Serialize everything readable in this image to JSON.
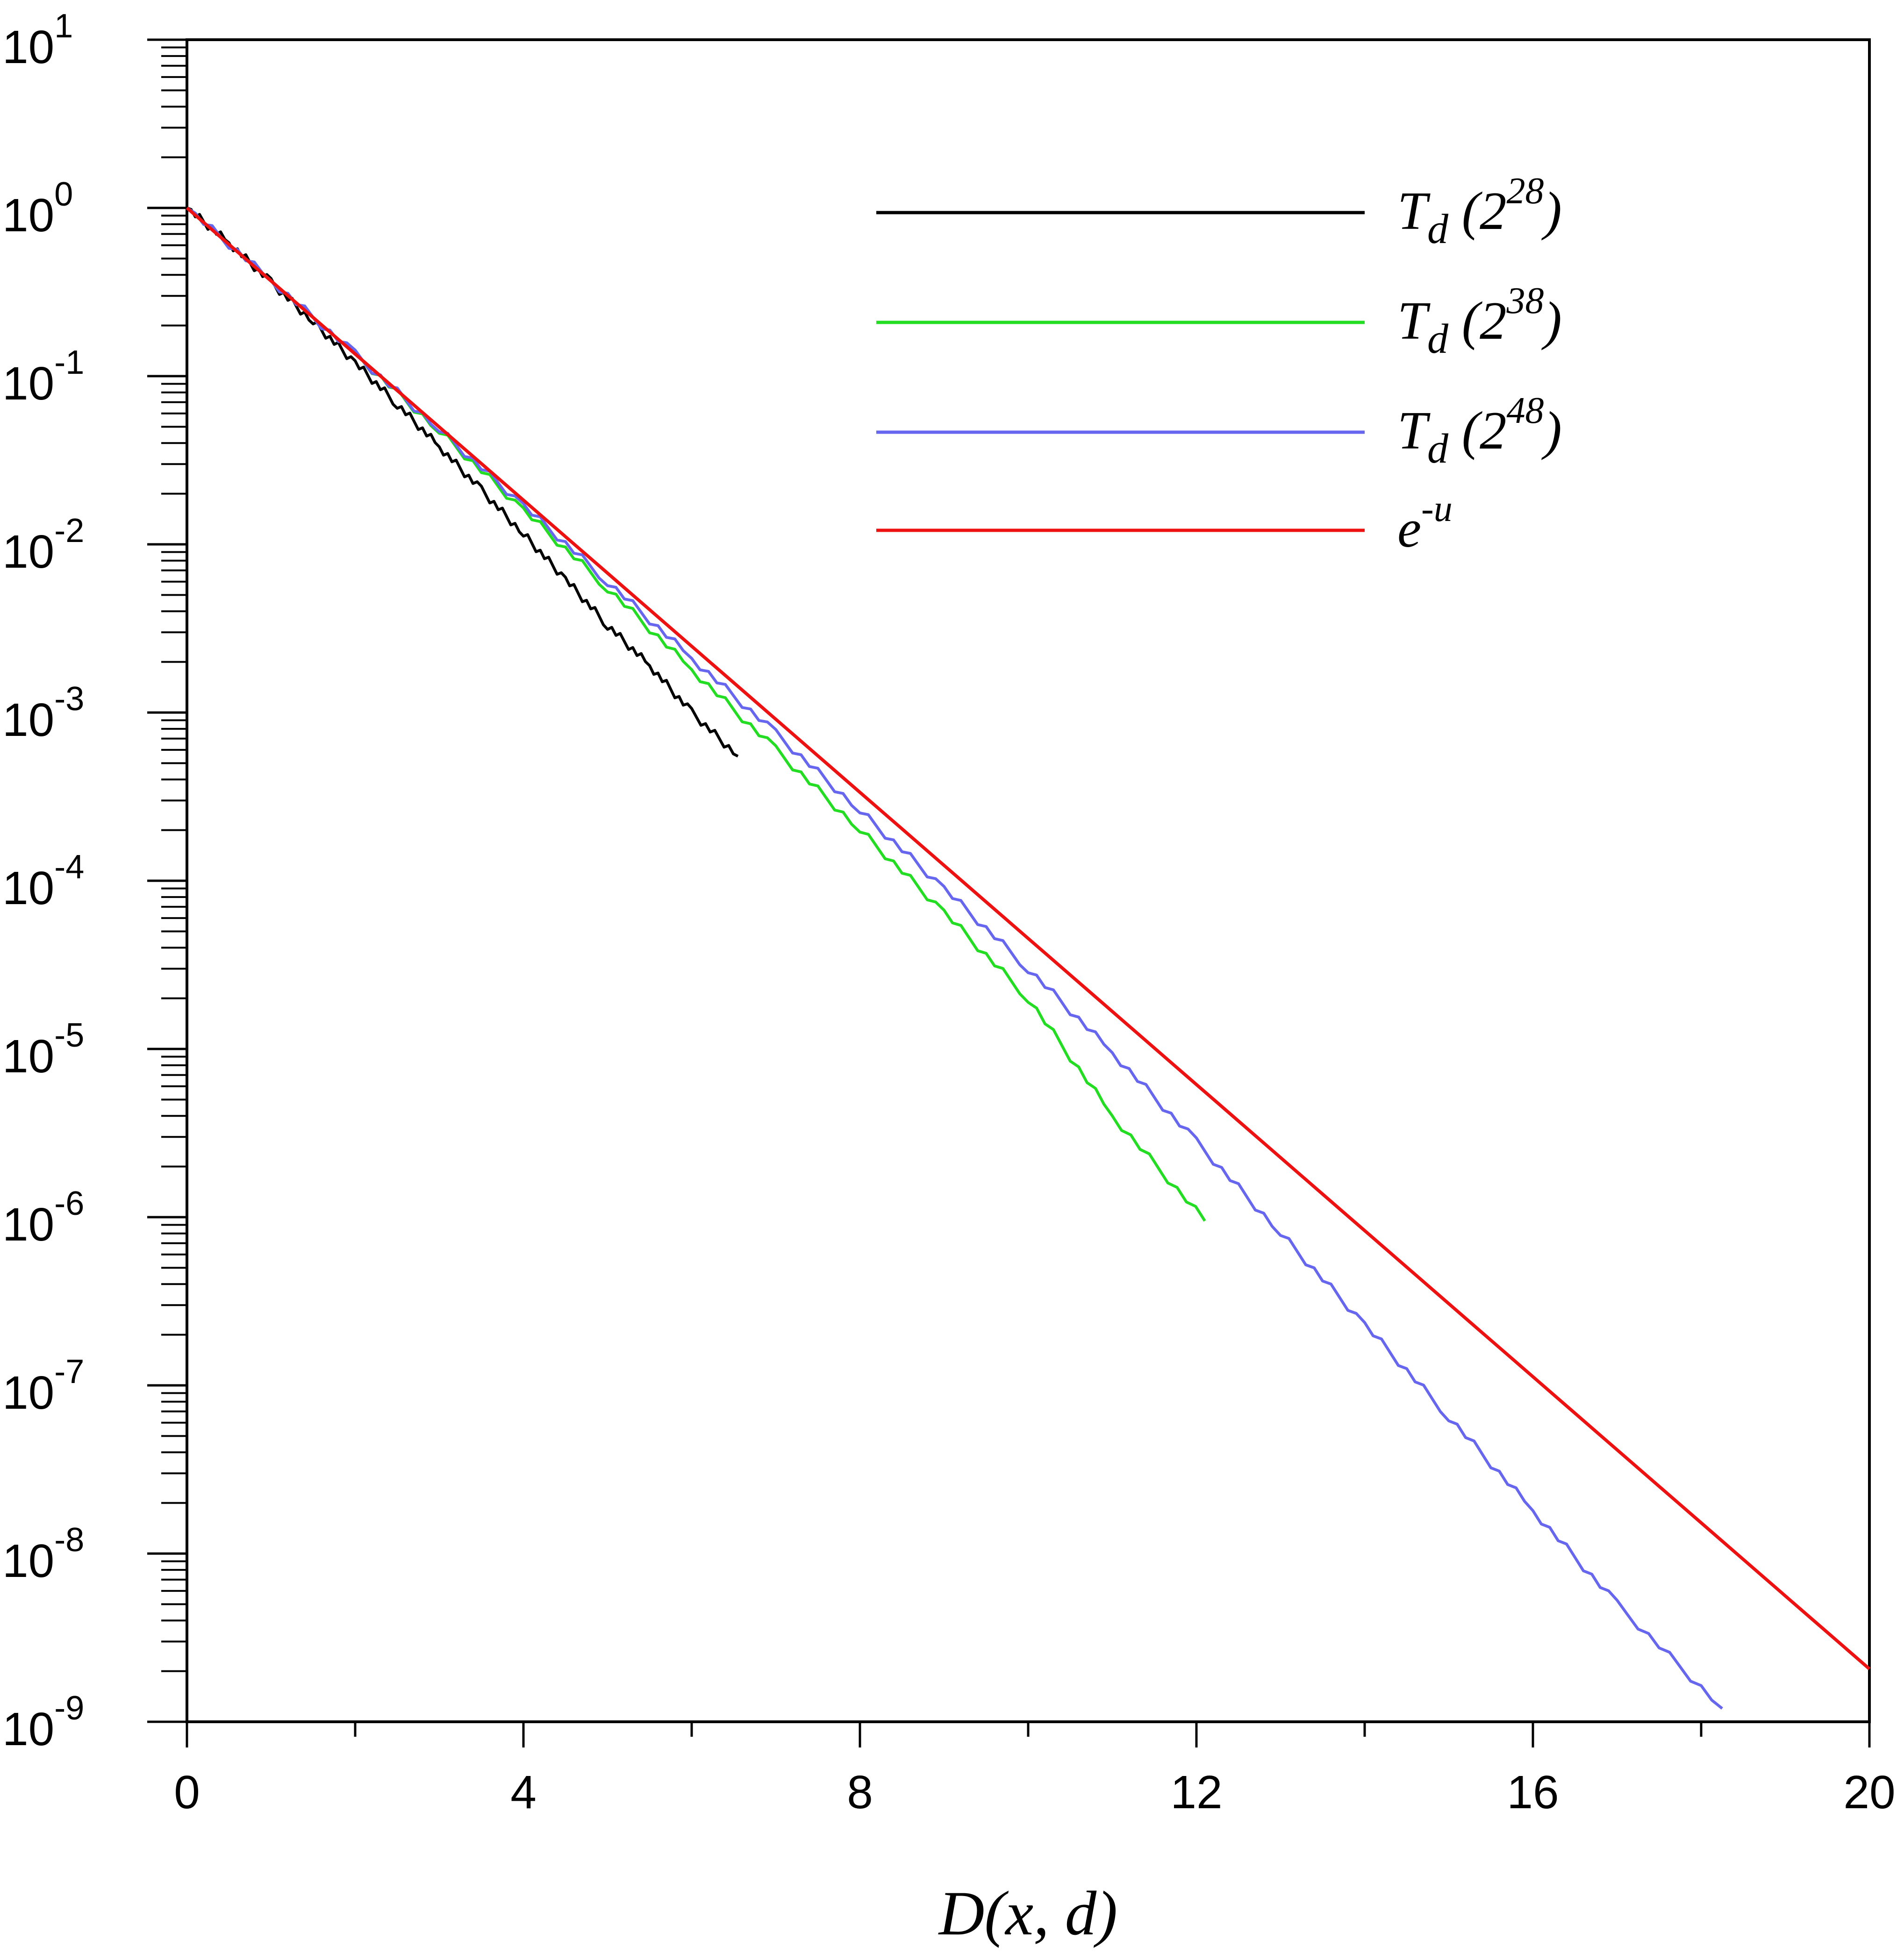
{
  "chart_data": {
    "type": "line",
    "title": "",
    "xlabel": "D(x, d)",
    "ylabel": "",
    "x_scale": "linear",
    "y_scale": "log",
    "xlim": [
      0,
      20
    ],
    "ylim": [
      1e-09,
      10
    ],
    "x_ticks": [
      0,
      4,
      8,
      12,
      16,
      20
    ],
    "x_tick_labels": [
      "0",
      "4",
      "8",
      "12",
      "16",
      "20"
    ],
    "y_ticks": [
      {
        "base": "10",
        "exp": "1"
      },
      {
        "base": "10",
        "exp": "0"
      },
      {
        "base": "10",
        "exp": "-1"
      },
      {
        "base": "10",
        "exp": "-2"
      },
      {
        "base": "10",
        "exp": "-3"
      },
      {
        "base": "10",
        "exp": "-4"
      },
      {
        "base": "10",
        "exp": "-5"
      },
      {
        "base": "10",
        "exp": "-6"
      },
      {
        "base": "10",
        "exp": "-7"
      },
      {
        "base": "10",
        "exp": "-8"
      },
      {
        "base": "10",
        "exp": "-9"
      }
    ],
    "grid": false,
    "legend_position": "top-right",
    "series": [
      {
        "name_main": "T",
        "name_sub": "d",
        "name_open": " (2",
        "name_sup": "28",
        "name_close": ")",
        "color": "#000000",
        "x": [
          0,
          0.5,
          1.0,
          1.5,
          2.0,
          2.5,
          3.0,
          3.5,
          4.0,
          4.5,
          5.0,
          5.5,
          6.0,
          6.55
        ],
        "y": [
          1.0,
          0.62,
          0.36,
          0.21,
          0.12,
          0.068,
          0.038,
          0.021,
          0.0115,
          0.0062,
          0.0033,
          0.0019,
          0.001,
          0.00055
        ]
      },
      {
        "name_main": "T",
        "name_sub": "d",
        "name_open": " (2",
        "name_sup": "38",
        "name_close": ")",
        "color": "#22dd22",
        "x": [
          0,
          1,
          2,
          3,
          4,
          5,
          6,
          7,
          8,
          9,
          10,
          11,
          12.1
        ],
        "y": [
          1.0,
          0.37,
          0.135,
          0.047,
          0.016,
          0.0055,
          0.0018,
          0.0006,
          0.0002,
          6.5e-05,
          2e-05,
          4e-06,
          9.5e-07
        ]
      },
      {
        "name_main": "T",
        "name_sub": "d",
        "name_open": " (2",
        "name_sup": "48",
        "name_close": ")",
        "color": "#6666ee",
        "x": [
          0,
          1,
          2,
          3,
          4,
          5,
          6,
          7,
          8,
          9,
          10,
          11,
          12,
          13,
          14,
          15,
          16,
          17,
          18.25
        ],
        "y": [
          1.0,
          0.37,
          0.135,
          0.048,
          0.017,
          0.006,
          0.0021,
          0.00075,
          0.00026,
          9e-05,
          3e-05,
          9.5e-06,
          2.8e-06,
          8e-07,
          2.3e-07,
          6.5e-08,
          1.8e-08,
          5e-09,
          1.2e-09
        ]
      },
      {
        "name_main": "e",
        "name_sup": "-u",
        "color": "#ee1111",
        "function": "exp(-u)",
        "x": [
          0,
          20
        ],
        "y": [
          1.0,
          2.06e-09
        ]
      }
    ]
  }
}
